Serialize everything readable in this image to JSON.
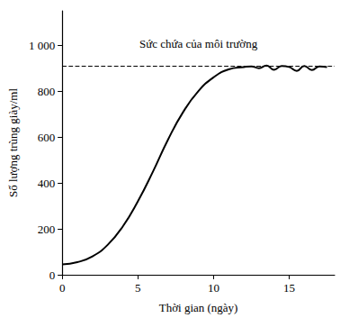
{
  "chart_data": {
    "type": "line",
    "x_label": "Thời gian (ngày)",
    "y_label": "Số lượng trùng giày/ml",
    "x": [
      0,
      1,
      2,
      3,
      4,
      5,
      6,
      7,
      8,
      9,
      10,
      11,
      12,
      12.5,
      13,
      13.5,
      14,
      14.5,
      15,
      15.5,
      16,
      16.5,
      17,
      17.5
    ],
    "values": [
      45,
      55,
      80,
      130,
      210,
      320,
      450,
      590,
      710,
      800,
      860,
      895,
      905,
      908,
      900,
      912,
      893,
      910,
      905,
      888,
      910,
      892,
      908,
      905
    ],
    "color": "#000000",
    "xlim": [
      0,
      18
    ],
    "xticks": [
      0,
      5,
      10,
      15
    ],
    "ylim": [
      0,
      1150
    ],
    "yticks": [
      0,
      200,
      400,
      600,
      800,
      {
        "value": 1000,
        "label": "1 000"
      }
    ],
    "annotations": [
      {
        "value": 910,
        "label": "Sức chứa của môi trường",
        "line_style": "dashed"
      }
    ],
    "grid": false
  }
}
